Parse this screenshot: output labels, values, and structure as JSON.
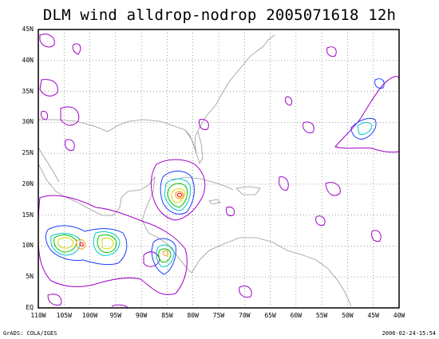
{
  "title": "DLM wind alldrop-nodrop 2005071618 12h",
  "axes": {
    "lat_labels": [
      "45N",
      "40N",
      "35N",
      "30N",
      "25N",
      "20N",
      "15N",
      "10N",
      "5N",
      "EQ"
    ],
    "lon_labels": [
      "110W",
      "105W",
      "100W",
      "95W",
      "90W",
      "85W",
      "80W",
      "75W",
      "70W",
      "65W",
      "60W",
      "55W",
      "50W",
      "45W",
      "40W"
    ]
  },
  "footer": {
    "left": "GrADS: COLA/IGES",
    "right": "2006-02-24-15:54"
  },
  "colors": {
    "contour_magenta": "#a000c8",
    "contour_blue": "#1e3cff",
    "contour_cyan": "#00c8c8",
    "contour_green": "#00c000",
    "contour_yellow": "#d8d800",
    "contour_orange": "#ff9600",
    "contour_red": "#ff0000",
    "coastline": "#999999",
    "grid": "#666666"
  }
}
